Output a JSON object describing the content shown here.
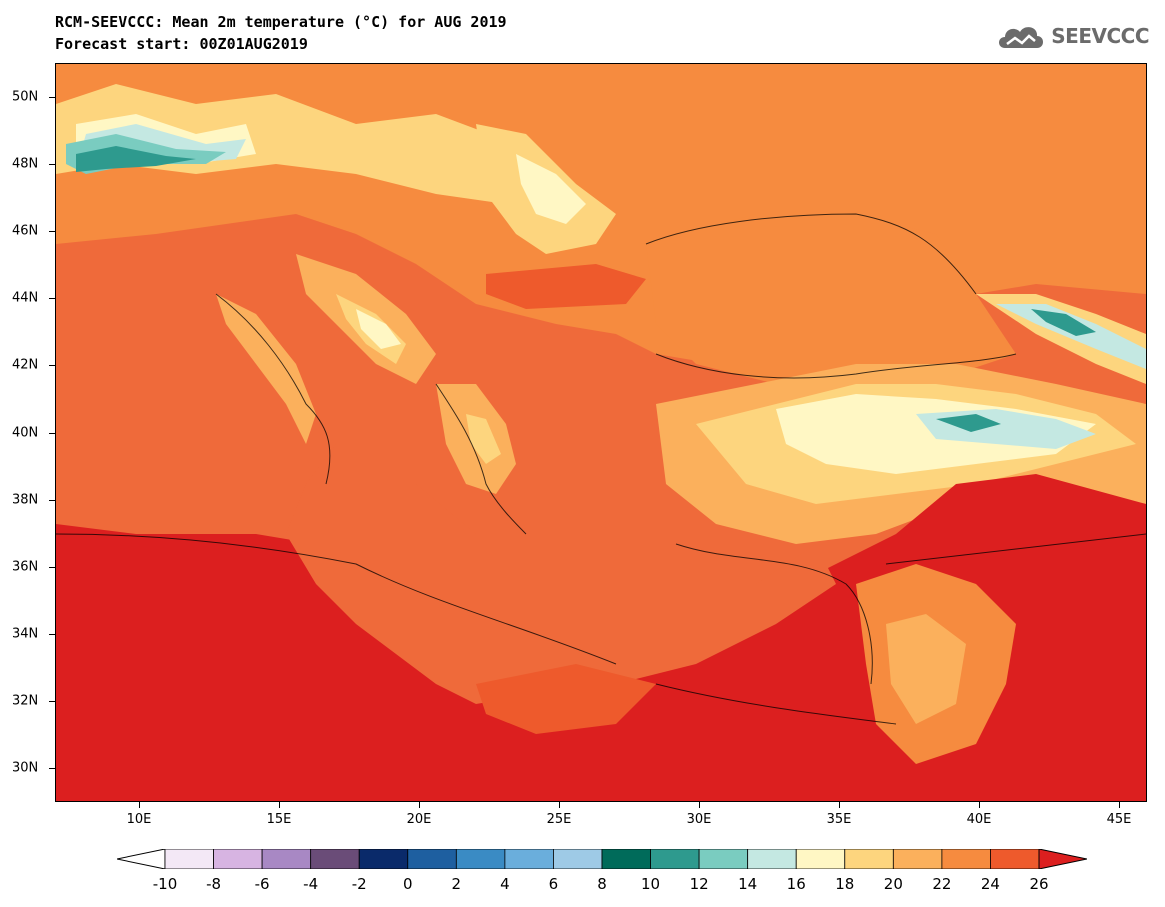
{
  "header": {
    "title_line1": "RCM-SEEVCCC: Mean 2m temperature (°C) for AUG 2019",
    "title_line2": "Forecast start: 00Z01AUG2019"
  },
  "logo": {
    "text": "SEEVCCC",
    "icon": "cloud-icon"
  },
  "map": {
    "lat_range": [
      29,
      51
    ],
    "lon_range": [
      7,
      46
    ],
    "lat_labels": [
      "30N",
      "32N",
      "34N",
      "36N",
      "38N",
      "40N",
      "42N",
      "44N",
      "46N",
      "48N",
      "50N"
    ],
    "lat_values": [
      30,
      32,
      34,
      36,
      38,
      40,
      42,
      44,
      46,
      48,
      50
    ],
    "lon_labels": [
      "10E",
      "15E",
      "20E",
      "25E",
      "30E",
      "35E",
      "40E",
      "45E"
    ],
    "lon_values": [
      10,
      15,
      20,
      25,
      30,
      35,
      40,
      45
    ]
  },
  "colorbar": {
    "labels": [
      "-10",
      "-8",
      "-6",
      "-4",
      "-2",
      "0",
      "2",
      "4",
      "6",
      "8",
      "10",
      "12",
      "14",
      "16",
      "18",
      "20",
      "22",
      "24",
      "26"
    ],
    "colors": [
      "#f3e8f6",
      "#d7b4e2",
      "#a888c4",
      "#6a4c78",
      "#0a2a6a",
      "#1e5fa0",
      "#3a8bc4",
      "#6aaedc",
      "#9ecae6",
      "#006b5a",
      "#2e9a8e",
      "#7accc0",
      "#c4e8e2",
      "#fff7c4",
      "#fdd57e",
      "#fbb05c",
      "#f68b3f",
      "#ee5a2c"
    ],
    "under_color": "#ffffff",
    "over_color": "#dc1f1f"
  }
}
